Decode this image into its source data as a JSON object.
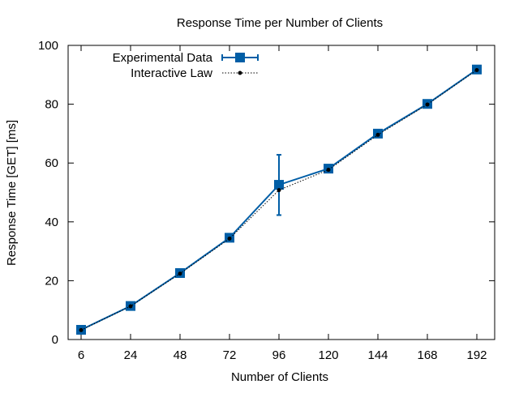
{
  "chart_data": {
    "type": "line",
    "title": "Response Time per Number of Clients",
    "xlabel": "Number of Clients",
    "ylabel": "Response Time [GET] [ms]",
    "categories": [
      "6",
      "24",
      "48",
      "72",
      "96",
      "120",
      "144",
      "168",
      "192"
    ],
    "ylim": [
      0,
      100
    ],
    "yticks": [
      0,
      20,
      40,
      60,
      80,
      100
    ],
    "grid": false,
    "legend_position": "top-left",
    "series": [
      {
        "name": "Experimental Data",
        "values": [
          3.3,
          11.4,
          22.6,
          34.6,
          52.6,
          58.1,
          70.0,
          80.1,
          91.8
        ],
        "error_low": [
          null,
          null,
          null,
          null,
          42.3,
          null,
          null,
          null,
          null
        ],
        "error_high": [
          null,
          null,
          null,
          null,
          62.8,
          null,
          null,
          null,
          null
        ],
        "color": "#005ea6",
        "marker": "square"
      },
      {
        "name": "Interactive Law",
        "values": [
          3.2,
          11.3,
          22.4,
          34.3,
          50.8,
          57.7,
          69.6,
          79.9,
          91.6
        ],
        "color": "#000000",
        "marker": "dot",
        "line_style": "dotted"
      }
    ]
  }
}
